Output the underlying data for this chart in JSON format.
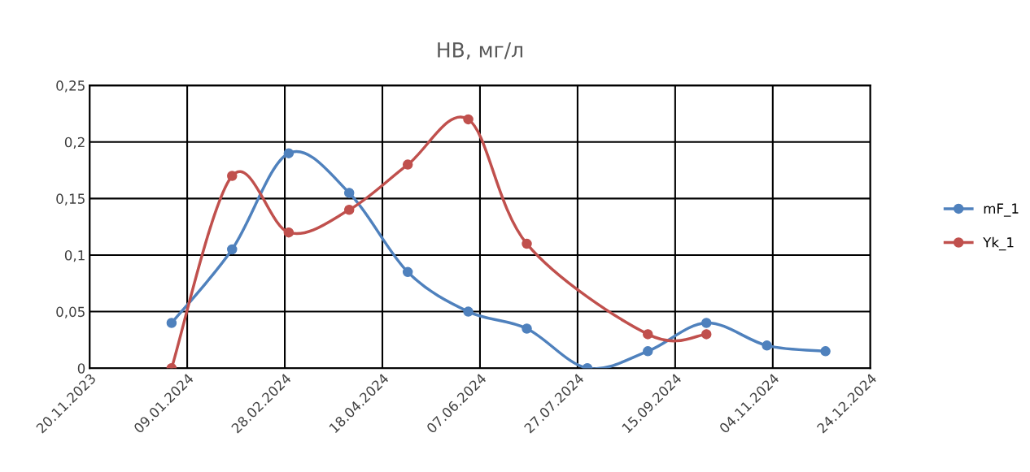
{
  "chart_data": {
    "type": "line",
    "title": "НВ, мг/л",
    "x": [
      "2024-01-01",
      "2024-02-01",
      "2024-03-01",
      "2024-04-01",
      "2024-05-01",
      "2024-06-01",
      "2024-07-01",
      "2024-08-01",
      "2024-09-01",
      "2024-10-01",
      "2024-11-01",
      "2024-12-01"
    ],
    "series": [
      {
        "name": "mF_1",
        "color": "#4f81bd",
        "values": [
          0.04,
          0.105,
          0.19,
          0.155,
          0.085,
          0.05,
          0.035,
          0,
          0.015,
          0.04,
          0.02,
          0.015
        ]
      },
      {
        "name": "Yk_1",
        "color": "#c0504d",
        "x": [
          "2024-01-01",
          "2024-02-01",
          "2024-03-01",
          "2024-04-01",
          "2024-05-01",
          "2024-06-01",
          "2024-07-01",
          "2024-09-01",
          "2024-10-01"
        ],
        "values": [
          0,
          0.17,
          0.12,
          0.14,
          0.18,
          0.22,
          0.11,
          0.03,
          0.03
        ]
      }
    ],
    "xlim": [
      "2023-11-20",
      "2024-12-24"
    ],
    "xticks": [
      {
        "value": "2023-11-20",
        "label": "20.11.2023"
      },
      {
        "value": "2024-01-09",
        "label": "09.01.2024"
      },
      {
        "value": "2024-02-28",
        "label": "28.02.2024"
      },
      {
        "value": "2024-04-18",
        "label": "18.04.2024"
      },
      {
        "value": "2024-06-07",
        "label": "07.06.2024"
      },
      {
        "value": "2024-07-27",
        "label": "27.07.2024"
      },
      {
        "value": "2024-09-15",
        "label": "15.09.2024"
      },
      {
        "value": "2024-11-04",
        "label": "04.11.2024"
      },
      {
        "value": "2024-12-24",
        "label": "24.12.2024"
      }
    ],
    "ylim": [
      0,
      0.25
    ],
    "yticks": [
      0,
      {
        "value": 0.05,
        "label": "0,05"
      },
      {
        "value": 0.1,
        "label": "0,1"
      },
      {
        "value": 0.15,
        "label": "0,15"
      },
      {
        "value": 0.2,
        "label": "0,2"
      },
      {
        "value": 0.25,
        "label": "0,25"
      }
    ],
    "grid": true,
    "legend": "right",
    "marker": "circle",
    "line_style": "solid"
  }
}
